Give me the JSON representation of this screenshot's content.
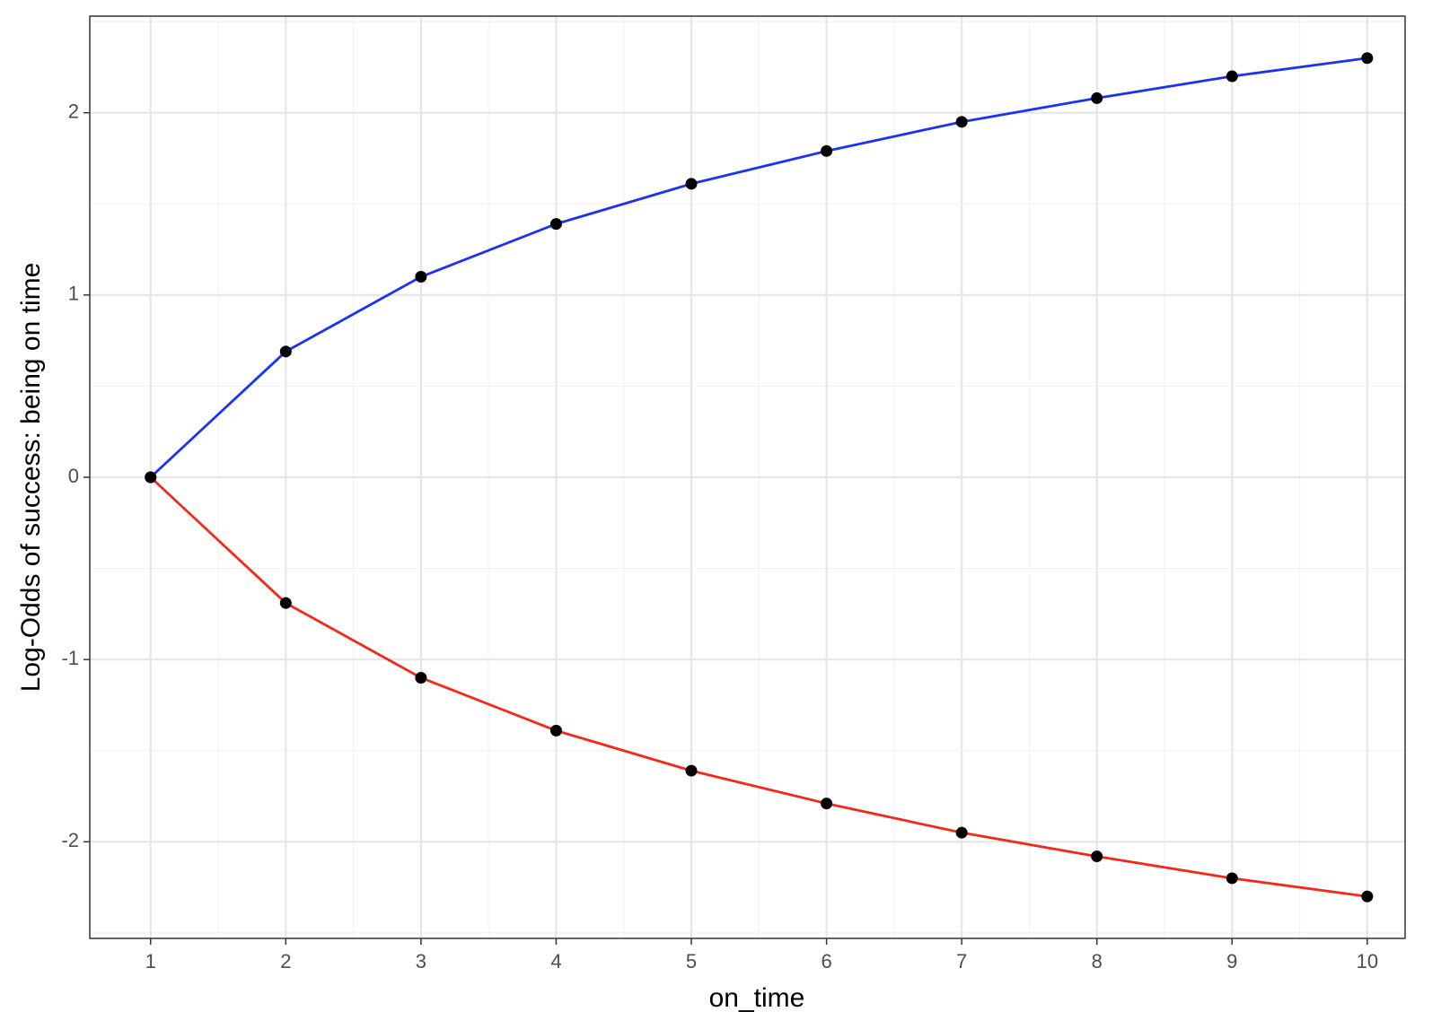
{
  "chart_data": {
    "type": "line",
    "x_label": "on_time",
    "y_label": "Log-Odds of success: being on time",
    "x": [
      1,
      2,
      3,
      4,
      5,
      6,
      7,
      8,
      9,
      10
    ],
    "series": [
      {
        "color": "#1c33f2",
        "values": [
          0,
          0.69,
          1.1,
          1.39,
          1.61,
          1.79,
          1.95,
          2.08,
          2.2,
          2.3
        ]
      },
      {
        "color": "#f5291a",
        "values": [
          0,
          -0.69,
          -1.1,
          -1.39,
          -1.61,
          -1.79,
          -1.95,
          -2.08,
          -2.2,
          -2.3
        ]
      }
    ],
    "point_color": "#000000",
    "xlim": [
      0.55,
      10.28
    ],
    "ylim": [
      -2.53,
      2.53
    ],
    "xticks": [
      1,
      2,
      3,
      4,
      5,
      6,
      7,
      8,
      9,
      10
    ],
    "yticks": [
      -2,
      -1,
      0,
      1,
      2
    ],
    "grid": true,
    "minor_grid": true
  }
}
